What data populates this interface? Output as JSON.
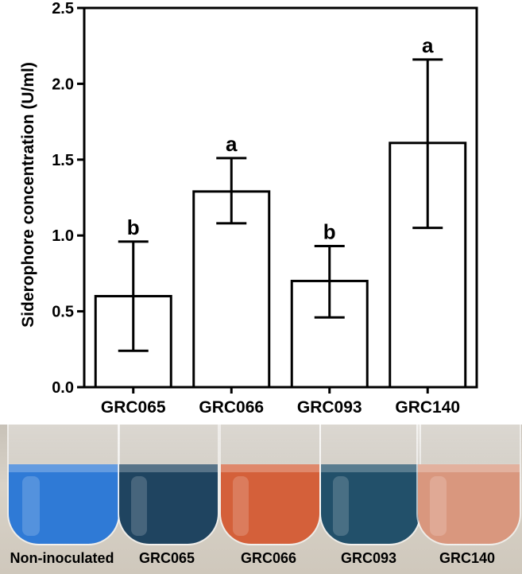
{
  "chart_data": {
    "type": "bar",
    "categories": [
      "GRC065",
      "GRC066",
      "GRC093",
      "GRC140"
    ],
    "values": [
      0.6,
      1.29,
      0.7,
      1.61
    ],
    "error_high": [
      0.96,
      1.51,
      0.93,
      2.16
    ],
    "error_low": [
      0.24,
      1.08,
      0.46,
      1.05
    ],
    "letters": [
      "b",
      "a",
      "b",
      "a"
    ],
    "ylabel": "Siderophore concentration (U/ml)",
    "xlabel": "",
    "title": "",
    "ylim": [
      0,
      2.5
    ],
    "yticks": [
      "0.0",
      "0.5",
      "1.0",
      "1.5",
      "2.0",
      "2.5"
    ],
    "grid": false,
    "bar_fill": "#ffffff",
    "bar_stroke": "#000000"
  },
  "photo": {
    "labels": [
      "Non-inoculated",
      "GRC065",
      "GRC066",
      "GRC093",
      "GRC140"
    ],
    "colors": [
      "#2f7ad6",
      "#1f4460",
      "#d4603a",
      "#22506a",
      "#d9977e"
    ]
  }
}
